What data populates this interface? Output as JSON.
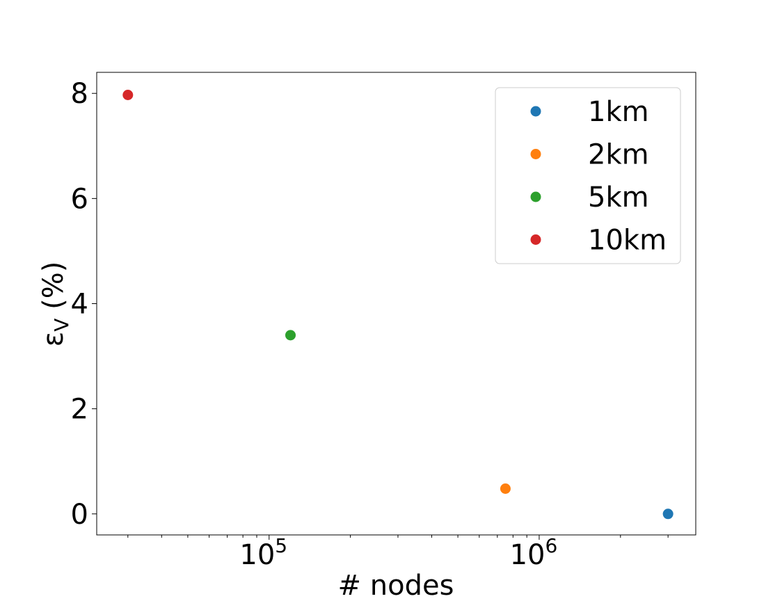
{
  "chart_data": {
    "type": "scatter",
    "title": "",
    "xlabel": "# nodes",
    "ylabel": "ε_V (%)",
    "x_scale": "log",
    "xlim": [
      23000,
      3800000
    ],
    "ylim": [
      -0.4,
      8.4
    ],
    "y_ticks": [
      "0",
      "2",
      "4",
      "6",
      "8"
    ],
    "x_tick_bases": [
      "10",
      "10"
    ],
    "x_tick_exponents": [
      "5",
      "6"
    ],
    "grid": false,
    "legend_position": "top-right",
    "series": [
      {
        "name": "1km",
        "color": "#1f77b4",
        "x": [
          3000000
        ],
        "y": [
          0.0
        ]
      },
      {
        "name": "2km",
        "color": "#ff7f0e",
        "x": [
          750000
        ],
        "y": [
          0.48
        ]
      },
      {
        "name": "5km",
        "color": "#2ca02c",
        "x": [
          120000
        ],
        "y": [
          3.4
        ]
      },
      {
        "name": "10km",
        "color": "#d62728",
        "x": [
          30000
        ],
        "y": [
          7.97
        ]
      }
    ]
  }
}
